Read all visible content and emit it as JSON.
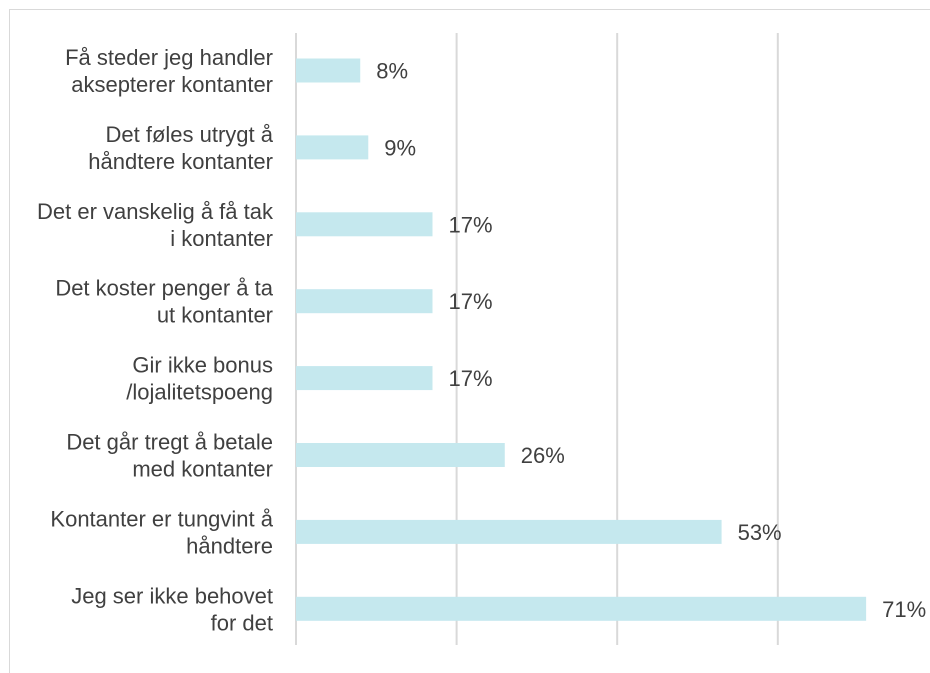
{
  "chart_data": {
    "type": "bar",
    "orientation": "horizontal",
    "categories": [
      [
        "Få steder jeg handler",
        "aksepterer kontanter"
      ],
      [
        "Det føles utrygt å",
        "håndtere kontanter"
      ],
      [
        "Det er vanskelig å få tak",
        "i kontanter"
      ],
      [
        "Det koster penger å ta",
        "ut kontanter"
      ],
      [
        "Gir ikke bonus",
        "/lojalitetspoeng"
      ],
      [
        "Det går tregt å betale",
        "med kontanter"
      ],
      [
        "Kontanter er tungvint å",
        "håndtere"
      ],
      [
        "Jeg ser ikke behovet",
        "for det"
      ]
    ],
    "values": [
      8,
      9,
      17,
      17,
      17,
      26,
      53,
      71
    ],
    "value_labels": [
      "8%",
      "9%",
      "17%",
      "17%",
      "17%",
      "26%",
      "53%",
      "71%"
    ],
    "xlim": [
      0,
      80
    ],
    "grid_x": [
      0,
      20,
      40,
      60
    ],
    "grid": true,
    "bar_color": "#c5e8ee",
    "grid_color": "#d9d9d9",
    "text_color": "#404040"
  }
}
